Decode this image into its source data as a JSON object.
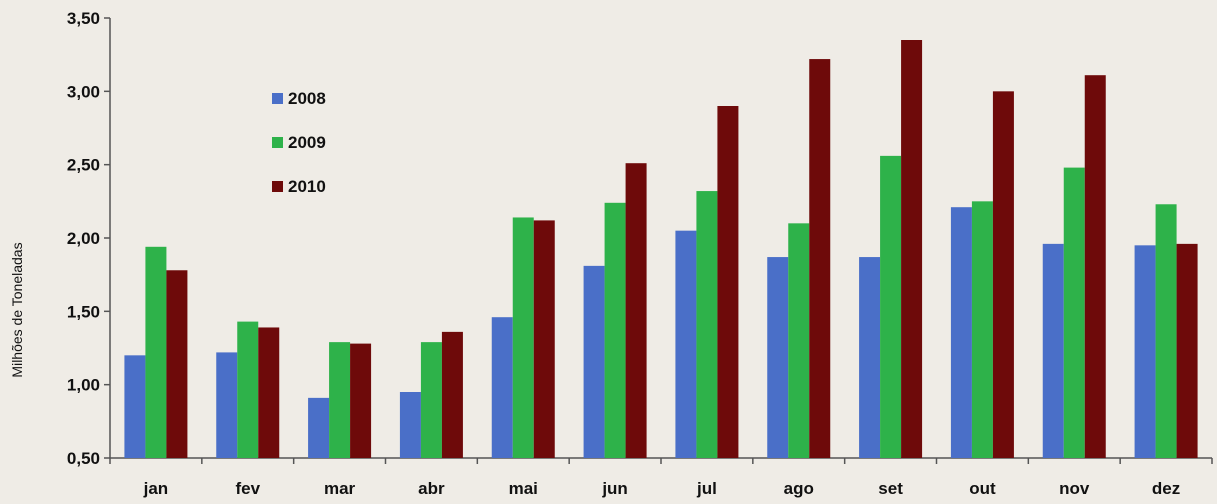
{
  "chart_data": {
    "type": "bar",
    "title": "",
    "xlabel": "",
    "ylabel": "Milhões de Toneladas",
    "ylim": [
      0.5,
      3.5
    ],
    "yticks": [
      0.5,
      1.0,
      1.5,
      2.0,
      2.5,
      3.0,
      3.5
    ],
    "ytick_labels": [
      "0,50",
      "1,00",
      "1,50",
      "2,00",
      "2,50",
      "3,00",
      "3,50"
    ],
    "grid": false,
    "legend_position": "top-left",
    "categories": [
      "jan",
      "fev",
      "mar",
      "abr",
      "mai",
      "jun",
      "jul",
      "ago",
      "set",
      "out",
      "nov",
      "dez"
    ],
    "series": [
      {
        "name": "2008",
        "color": "#4a6fc8",
        "values": [
          1.2,
          1.22,
          0.91,
          0.95,
          1.46,
          1.81,
          2.05,
          1.87,
          1.87,
          2.21,
          1.96,
          1.95
        ]
      },
      {
        "name": "2009",
        "color": "#2eb24a",
        "values": [
          1.94,
          1.43,
          1.29,
          1.29,
          2.14,
          2.24,
          2.32,
          2.1,
          2.56,
          2.25,
          2.48,
          2.23
        ]
      },
      {
        "name": "2010",
        "color": "#6e0a0a",
        "values": [
          1.78,
          1.39,
          1.28,
          1.36,
          2.12,
          2.51,
          2.9,
          3.22,
          3.35,
          3.0,
          3.11,
          1.96
        ]
      }
    ]
  }
}
